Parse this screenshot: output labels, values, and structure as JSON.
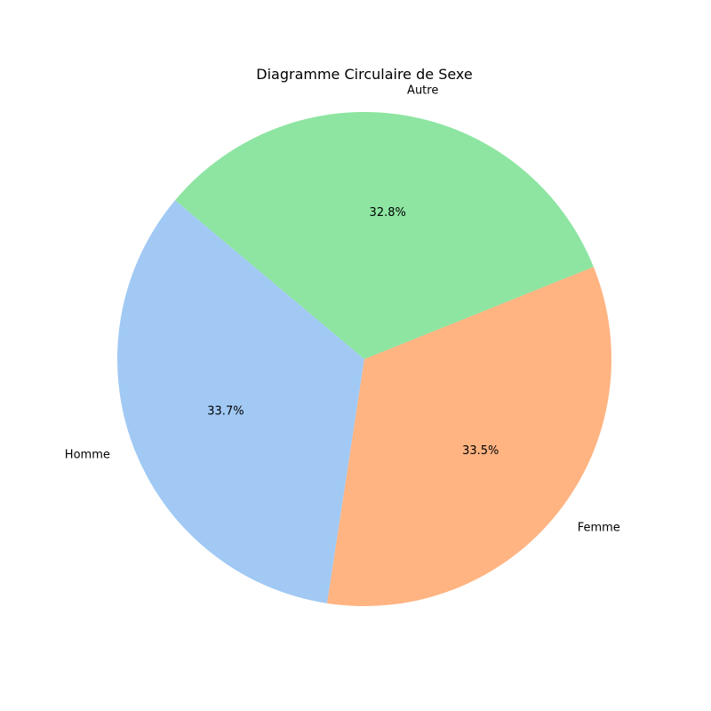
{
  "chart_data": {
    "type": "pie",
    "title": "Diagramme Circulaire de Sexe",
    "categories": [
      "Homme",
      "Femme",
      "Autre"
    ],
    "values": [
      33.7,
      33.5,
      32.8
    ],
    "value_labels": [
      "33.7%",
      "33.5%",
      "32.8%"
    ],
    "colors": [
      "#a1c9f4",
      "#ffb482",
      "#8de5a1"
    ],
    "start_angle_deg": 140,
    "direction": "counterclockwise"
  }
}
